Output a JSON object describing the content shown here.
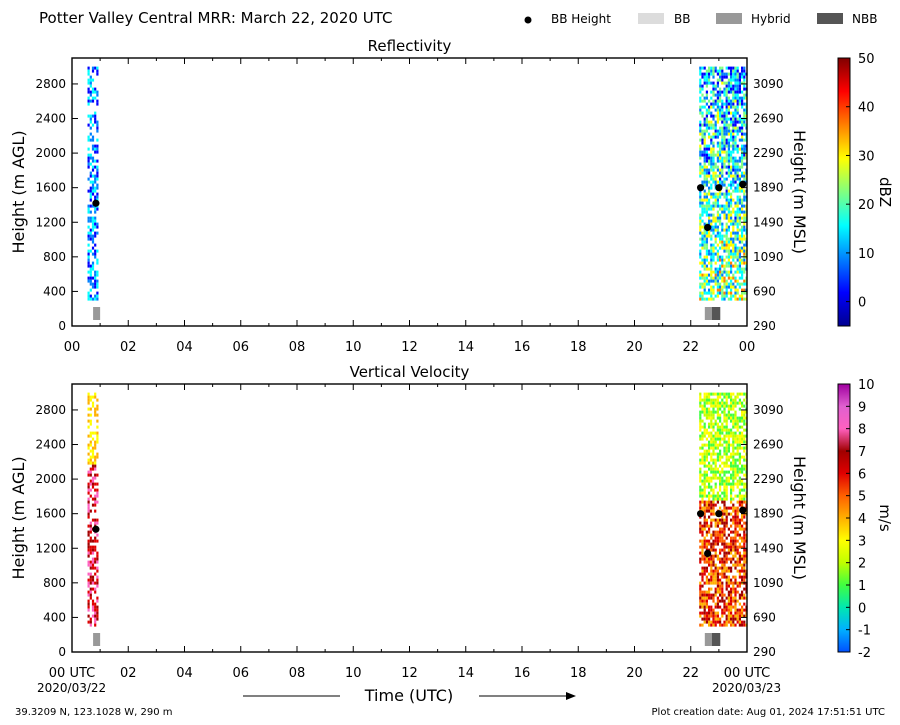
{
  "header": {
    "title": "Potter Valley Central MRR:  March 22, 2020 UTC",
    "legend": [
      {
        "label": "BB Height",
        "kind": "dot",
        "color": "#000000"
      },
      {
        "label": "BB",
        "kind": "box",
        "color": "#dcdcdc"
      },
      {
        "label": "Hybrid",
        "kind": "box",
        "color": "#999999"
      },
      {
        "label": "NBB",
        "kind": "box",
        "color": "#555555"
      }
    ]
  },
  "footer": {
    "location": "39.3209 N, 123.1028 W, 290 m",
    "creation": "Plot creation date: Aug 01, 2024 17:51:51 UTC",
    "date_start": "2020/03/22",
    "date_end": "2020/03/23",
    "time_label": "Time (UTC)"
  },
  "chart_data": [
    {
      "type": "heatmap",
      "title": "Reflectivity",
      "ylabel": "Height (m AGL)",
      "ylabel_right": "Height (m MSL)",
      "x_ticks": [
        "00",
        "02",
        "04",
        "06",
        "08",
        "10",
        "12",
        "14",
        "16",
        "18",
        "20",
        "22",
        "00"
      ],
      "xlim": [
        0,
        24
      ],
      "ylim": [
        0,
        3100
      ],
      "y_ticks": [
        0,
        400,
        800,
        1200,
        1600,
        2000,
        2400,
        2800
      ],
      "y2_ticks": [
        290,
        690,
        1090,
        1490,
        1890,
        2290,
        2690,
        3090
      ],
      "colorbar": {
        "label": "dBZ",
        "min": -5,
        "max": 50,
        "ticks": [
          0,
          10,
          20,
          30,
          40,
          50
        ],
        "colors": [
          "#00008f",
          "#0000ff",
          "#0080ff",
          "#00ffff",
          "#80ff80",
          "#ffff00",
          "#ff8000",
          "#ff0000",
          "#800000"
        ]
      },
      "data_blocks": [
        {
          "start_hour": 0.55,
          "end_hour": 0.9,
          "range_value": "0 to 12"
        },
        {
          "start_hour": 22.3,
          "end_hour": 24.0,
          "range_value": "-2 to 22"
        }
      ],
      "bb_height": [
        {
          "hour": 0.85,
          "height": 1420
        },
        {
          "hour": 22.35,
          "height": 1600
        },
        {
          "hour": 22.6,
          "height": 1140
        },
        {
          "hour": 23.0,
          "height": 1600
        },
        {
          "hour": 23.85,
          "height": 1640
        }
      ],
      "bb_type": [
        {
          "start_hour": 0.75,
          "end_hour": 1.0,
          "type": "Hybrid"
        },
        {
          "start_hour": 22.5,
          "end_hour": 22.75,
          "type": "Hybrid"
        },
        {
          "start_hour": 22.75,
          "end_hour": 23.05,
          "type": "NBB"
        }
      ]
    },
    {
      "type": "heatmap",
      "title": "Vertical Velocity",
      "ylabel": "Height (m AGL)",
      "ylabel_right": "Height (m MSL)",
      "x_ticks": [
        "00 UTC",
        "02",
        "04",
        "06",
        "08",
        "10",
        "12",
        "14",
        "16",
        "18",
        "20",
        "22",
        "00 UTC"
      ],
      "xlim": [
        0,
        24
      ],
      "ylim": [
        0,
        3100
      ],
      "y_ticks": [
        0,
        400,
        800,
        1200,
        1600,
        2000,
        2400,
        2800
      ],
      "y2_ticks": [
        290,
        690,
        1090,
        1490,
        1890,
        2290,
        2690,
        3090
      ],
      "colorbar": {
        "label": "m/s",
        "min": -2,
        "max": 10,
        "ticks": [
          -2,
          -1,
          0,
          1,
          2,
          3,
          4,
          5,
          6,
          7,
          8,
          9,
          10
        ],
        "colors": [
          "#0050ff",
          "#00b0ff",
          "#00e8b0",
          "#40ff40",
          "#c0ff00",
          "#ffff00",
          "#ffb000",
          "#ff6000",
          "#e00000",
          "#a00000",
          "#ff60c0",
          "#e060d0",
          "#a000a0"
        ]
      },
      "data_blocks": [
        {
          "start_hour": 0.55,
          "end_hour": 0.9,
          "range_value": "3 to 8"
        },
        {
          "start_hour": 22.3,
          "end_hour": 24.0,
          "range_value": "0 to 8"
        }
      ],
      "bb_height": [
        {
          "hour": 0.85,
          "height": 1420
        },
        {
          "hour": 22.35,
          "height": 1600
        },
        {
          "hour": 22.6,
          "height": 1140
        },
        {
          "hour": 23.0,
          "height": 1600
        },
        {
          "hour": 23.85,
          "height": 1640
        }
      ],
      "bb_type": [
        {
          "start_hour": 0.75,
          "end_hour": 1.0,
          "type": "Hybrid"
        },
        {
          "start_hour": 22.5,
          "end_hour": 22.75,
          "type": "Hybrid"
        },
        {
          "start_hour": 22.75,
          "end_hour": 23.05,
          "type": "NBB"
        }
      ]
    }
  ]
}
